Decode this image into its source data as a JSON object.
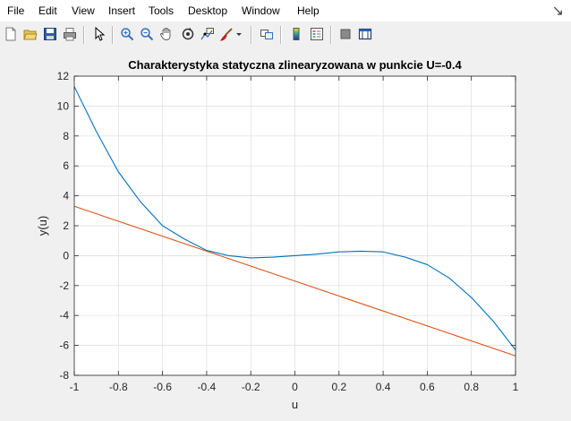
{
  "menu": {
    "items": [
      "File",
      "Edit",
      "View",
      "Insert",
      "Tools",
      "Desktop",
      "Window",
      "Help"
    ],
    "close_glyph": "↘"
  },
  "toolbar": {
    "buttons": [
      "new-figure-icon",
      "open-file-icon",
      "save-icon",
      "print-icon",
      "edit-plot-icon",
      "zoom-in-icon",
      "zoom-out-icon",
      "pan-icon",
      "rotate-3d-icon",
      "data-cursor-icon",
      "brush-icon",
      "link-plot-icon",
      "colorbar-icon",
      "legend-icon",
      "hide-plot-tools-icon",
      "show-plot-tools-icon"
    ]
  },
  "colors": {
    "curve": "#0072BD",
    "tangent": "#D95319",
    "grid": "#dcdcdc",
    "axes_bg": "#ffffff",
    "figure_bg": "#f0f0f0"
  },
  "chart_data": {
    "type": "line",
    "title": "Charakterystyka statyczna zlinearyzowana w punkcie U=-0.4",
    "xlabel": "u",
    "ylabel": "y(u)",
    "xlim": [
      -1,
      1
    ],
    "ylim": [
      -8,
      12
    ],
    "xticks": [
      -1,
      -0.8,
      -0.6,
      -0.4,
      -0.2,
      0,
      0.2,
      0.4,
      0.6,
      0.8,
      1
    ],
    "xtick_labels": [
      "-1",
      "-0.8",
      "-0.6",
      "-0.4",
      "-0.2",
      "0",
      "0.2",
      "0.4",
      "0.6",
      "0.8",
      "1"
    ],
    "yticks": [
      -8,
      -6,
      -4,
      -2,
      0,
      2,
      4,
      6,
      8,
      10,
      12
    ],
    "ytick_labels": [
      "-8",
      "-6",
      "-4",
      "-2",
      "0",
      "2",
      "4",
      "6",
      "8",
      "10",
      "12"
    ],
    "grid": true,
    "series": [
      {
        "x": [
          -1,
          -0.9,
          -0.8,
          -0.7,
          -0.6,
          -0.5,
          -0.4,
          -0.3,
          -0.2,
          -0.1,
          0,
          0.1,
          0.2,
          0.3,
          0.4,
          0.5,
          0.6,
          0.7,
          0.8,
          0.9,
          1
        ],
        "values": [
          11.3,
          8.3,
          5.6,
          3.6,
          2.0,
          1.1,
          0.35,
          0.0,
          -0.15,
          -0.1,
          0.0,
          0.1,
          0.25,
          0.3,
          0.25,
          -0.1,
          -0.6,
          -1.5,
          -2.8,
          -4.4,
          -6.3
        ]
      },
      {
        "x": [
          -1,
          1
        ],
        "values": [
          3.3,
          -6.7
        ]
      }
    ]
  }
}
